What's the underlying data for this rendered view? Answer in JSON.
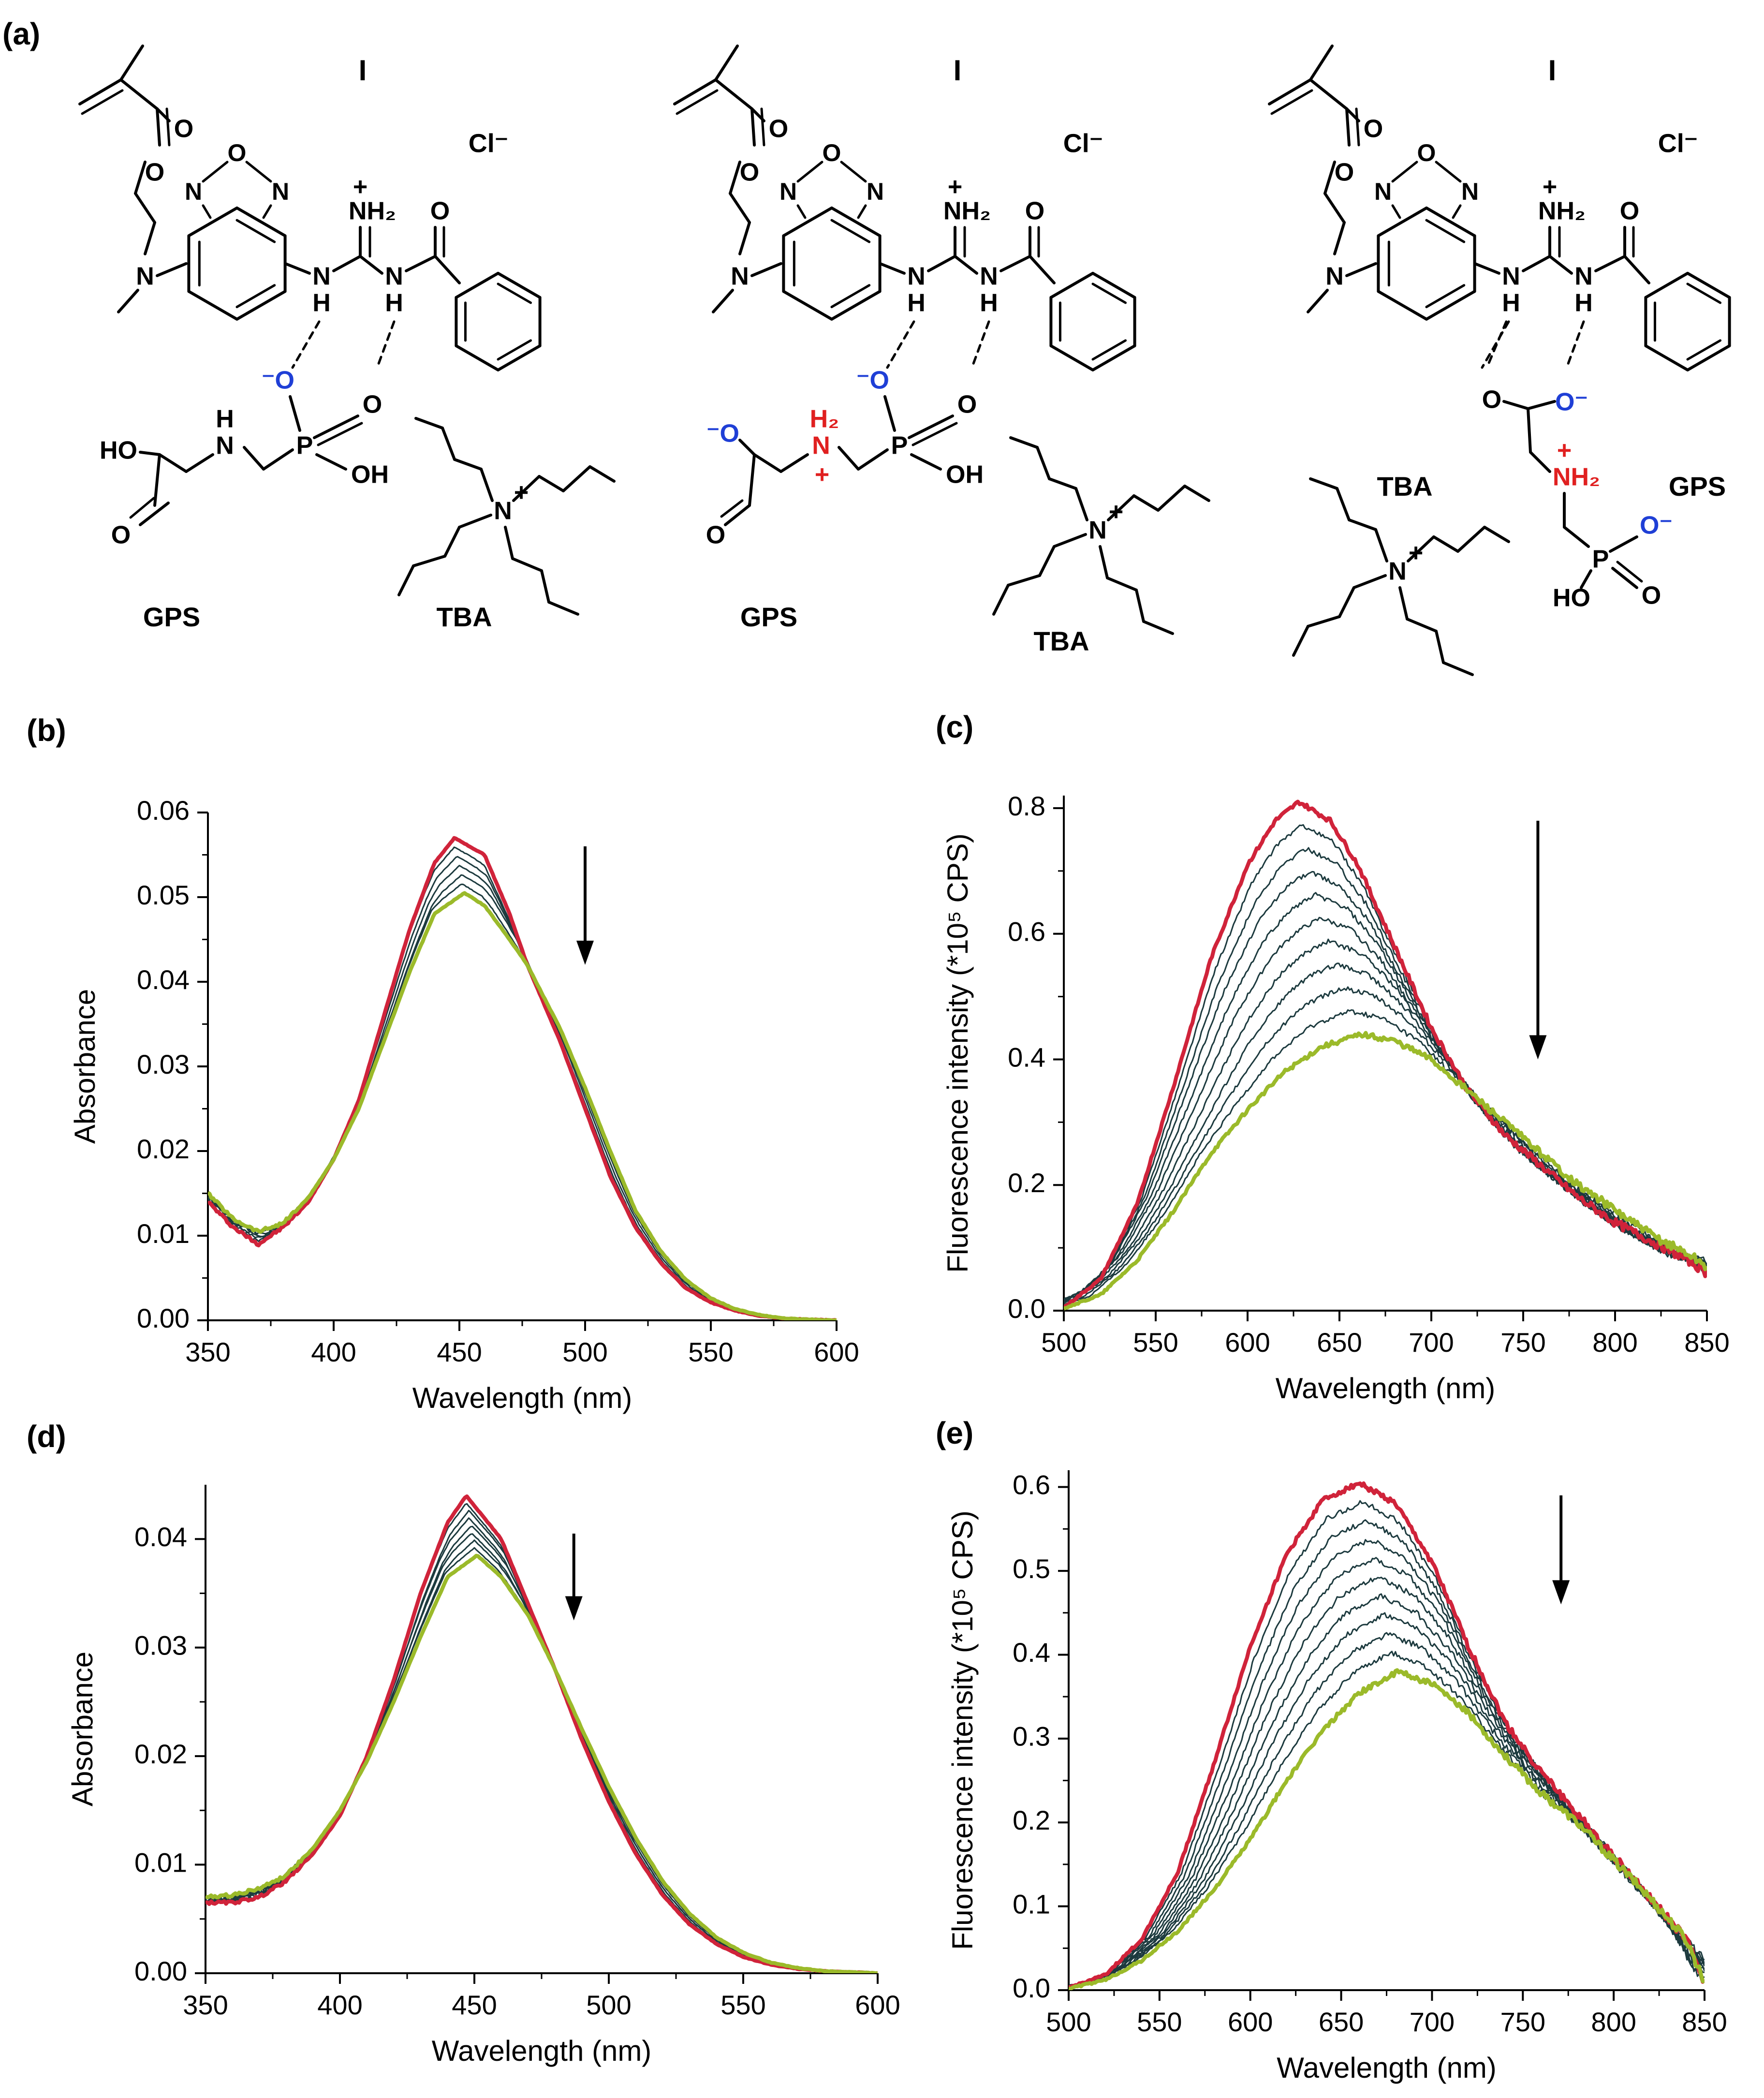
{
  "panel_labels": {
    "a": "(a)",
    "b": "(b)",
    "c": "(c)",
    "d": "(d)",
    "e": "(e)"
  },
  "colors": {
    "first_trace": "#d0233a",
    "last_trace": "#9bba2a",
    "intermediate_trace": "#1c3a3e",
    "positive_charge_atoms": "#e02020",
    "negative_oxygen": "#1f3fd6"
  },
  "structures": {
    "panels": [
      {
        "receptor_label": "I",
        "counterion": "Cl⁻",
        "guest_label": "GPS",
        "cation_label": "TBA",
        "atoms": {
          "O_ester": "O",
          "O_carbonyl": "O",
          "ring_O": "O",
          "ring_N1": "N",
          "ring_N2": "N",
          "NMe": "N",
          "NH_left": "N",
          "H_left": "H",
          "NH2_plus": "NH₂",
          "plus": "+",
          "NH_right": "N",
          "H_right": "H",
          "O_benzoyl": "O",
          "phosphonate_O_minus": "⁻O",
          "phosphonate_O": "O",
          "phosphonate_P": "P",
          "phosphonate_OH": "OH",
          "HO": "HO",
          "glycine_NH": "N",
          "glycine_H": "H",
          "glycine_O": "O",
          "ammonium_N": "N"
        }
      },
      {
        "receptor_label": "I",
        "counterion": "Cl⁻",
        "guest_label": "GPS",
        "cation_label": "TBA",
        "atoms": {
          "O_ester": "O",
          "O_carbonyl": "O",
          "ring_O": "O",
          "ring_N1": "N",
          "ring_N2": "N",
          "NMe": "N",
          "NH_left": "N",
          "H_left": "H",
          "NH2_plus": "NH₂",
          "plus": "+",
          "NH_right": "N",
          "H_right": "H",
          "O_benzoyl": "O",
          "phosphonate_O_minus": "⁻O",
          "phosphonate_O": "O",
          "phosphonate_P": "P",
          "phosphonate_OH": "OH",
          "carboxylate_O_minus": "⁻O",
          "glycine_N": "N",
          "glycine_H2": "H₂",
          "glycine_plus": "+",
          "glycine_O": "O",
          "ammonium_N": "N"
        }
      },
      {
        "receptor_label": "I",
        "counterion": "Cl⁻",
        "guest_label": "GPS",
        "cation_label": "TBA",
        "atoms": {
          "O_ester": "O",
          "O_carbonyl": "O",
          "ring_O": "O",
          "ring_N1": "N",
          "ring_N2": "N",
          "NMe": "N",
          "NH_left": "N",
          "H_left": "H",
          "NH2_plus": "NH₂",
          "plus": "+",
          "NH_right": "N",
          "H_right": "H",
          "O_benzoyl": "O",
          "carboxylate_O": "O",
          "carboxylate_O_minus": "O⁻",
          "glycine_NH2": "NH₂",
          "glycine_plus": "+",
          "phosphonate_P": "P",
          "phosphonate_O_minus": "O⁻",
          "phosphonate_O": "O",
          "phosphonate_HO": "HO",
          "ammonium_N": "N"
        }
      }
    ]
  },
  "chart_data": [
    {
      "panel": "(b)",
      "type": "line",
      "xlabel": "Wavelength (nm)",
      "ylabel": "Absorbance",
      "xlim": [
        350,
        600
      ],
      "ylim": [
        0.0,
        0.06
      ],
      "x_ticks": [
        350,
        400,
        450,
        500,
        550,
        600
      ],
      "x_tick_labels": [
        "350",
        "400",
        "450",
        "500",
        "550",
        "600"
      ],
      "y_ticks": [
        0.0,
        0.01,
        0.02,
        0.03,
        0.04,
        0.05,
        0.06
      ],
      "y_tick_labels": [
        "0.00",
        "0.01",
        "0.02",
        "0.03",
        "0.04",
        "0.05",
        "0.06"
      ],
      "grid": false,
      "arrow": {
        "x": 500,
        "y_from": 0.056,
        "y_to": 0.042
      },
      "series": [
        {
          "color": "red",
          "peak_x": 448,
          "peak_y": 0.057,
          "x": [
            350,
            360,
            370,
            380,
            390,
            400,
            410,
            420,
            430,
            440,
            448,
            460,
            470,
            477,
            490,
            500,
            510,
            520,
            530,
            540,
            550,
            560,
            570,
            580,
            590,
            600
          ],
          "y": [
            0.014,
            0.011,
            0.009,
            0.011,
            0.014,
            0.019,
            0.026,
            0.036,
            0.046,
            0.054,
            0.057,
            0.055,
            0.048,
            0.042,
            0.033,
            0.025,
            0.017,
            0.011,
            0.0068,
            0.0038,
            0.0021,
            0.0011,
            0.0005,
            0.0002,
            0.0001,
            0.0
          ]
        },
        {
          "color": "dark",
          "peak_x": 448,
          "peak_y": 0.0558
        },
        {
          "color": "dark",
          "peak_x": 449,
          "peak_y": 0.0546
        },
        {
          "color": "dark",
          "peak_x": 450,
          "peak_y": 0.0535
        },
        {
          "color": "dark",
          "peak_x": 451,
          "peak_y": 0.0524
        },
        {
          "color": "dark",
          "peak_x": 451,
          "peak_y": 0.0514
        },
        {
          "color": "green",
          "peak_x": 452,
          "peak_y": 0.0505,
          "x": [
            350,
            360,
            370,
            380,
            390,
            400,
            410,
            420,
            430,
            440,
            452,
            460,
            470,
            477,
            490,
            500,
            510,
            520,
            530,
            540,
            550,
            560,
            570,
            580,
            590,
            600
          ],
          "y": [
            0.015,
            0.012,
            0.0105,
            0.0115,
            0.0145,
            0.019,
            0.025,
            0.033,
            0.041,
            0.048,
            0.0505,
            0.049,
            0.045,
            0.042,
            0.0345,
            0.0275,
            0.02,
            0.013,
            0.0082,
            0.0048,
            0.0026,
            0.0013,
            0.0006,
            0.0002,
            0.0001,
            0.0
          ]
        }
      ]
    },
    {
      "panel": "(c)",
      "type": "line",
      "xlabel": "Wavelength (nm)",
      "ylabel": "Fluorescence intensity (*10⁵ CPS)",
      "xlim": [
        500,
        850
      ],
      "ylim": [
        0.0,
        0.82
      ],
      "x_ticks": [
        500,
        550,
        600,
        650,
        700,
        750,
        800,
        850
      ],
      "x_tick_labels": [
        "500",
        "550",
        "600",
        "650",
        "700",
        "750",
        "800",
        "850"
      ],
      "y_ticks": [
        0.0,
        0.2,
        0.4,
        0.6,
        0.8
      ],
      "y_tick_labels": [
        "0.0",
        "0.2",
        "0.4",
        "0.6",
        "0.8"
      ],
      "grid": false,
      "arrow": {
        "x": 758,
        "y_from": 0.78,
        "y_to": 0.4
      },
      "series": [
        {
          "color": "red",
          "peak_x": 628,
          "peak_y": 0.81,
          "x": [
            500,
            520,
            540,
            560,
            580,
            600,
            615,
            628,
            645,
            660,
            680,
            700,
            720,
            740,
            760,
            780,
            800,
            820,
            840,
            850
          ],
          "y": [
            0.005,
            0.05,
            0.17,
            0.36,
            0.56,
            0.71,
            0.78,
            0.81,
            0.78,
            0.71,
            0.58,
            0.45,
            0.35,
            0.28,
            0.23,
            0.18,
            0.14,
            0.11,
            0.08,
            0.06
          ]
        },
        {
          "color": "dark",
          "peak_x": 630,
          "peak_y": 0.78
        },
        {
          "color": "dark",
          "peak_x": 632,
          "peak_y": 0.73
        },
        {
          "color": "dark",
          "peak_x": 634,
          "peak_y": 0.69
        },
        {
          "color": "dark",
          "peak_x": 637,
          "peak_y": 0.64
        },
        {
          "color": "dark",
          "peak_x": 640,
          "peak_y": 0.6
        },
        {
          "color": "dark",
          "peak_x": 644,
          "peak_y": 0.55
        },
        {
          "color": "dark",
          "peak_x": 648,
          "peak_y": 0.52
        },
        {
          "color": "dark",
          "peak_x": 652,
          "peak_y": 0.49
        },
        {
          "color": "dark",
          "peak_x": 656,
          "peak_y": 0.46
        },
        {
          "color": "green",
          "peak_x": 662,
          "peak_y": 0.44,
          "x": [
            500,
            520,
            540,
            560,
            580,
            600,
            620,
            640,
            662,
            680,
            700,
            720,
            740,
            760,
            780,
            800,
            820,
            840,
            850
          ],
          "y": [
            0.004,
            0.025,
            0.08,
            0.16,
            0.25,
            0.32,
            0.38,
            0.42,
            0.44,
            0.43,
            0.4,
            0.35,
            0.3,
            0.25,
            0.2,
            0.16,
            0.12,
            0.09,
            0.07
          ]
        }
      ]
    },
    {
      "panel": "(d)",
      "type": "line",
      "xlabel": "Wavelength (nm)",
      "ylabel": "Absorbance",
      "xlim": [
        350,
        600
      ],
      "ylim": [
        0.0,
        0.045
      ],
      "x_ticks": [
        350,
        400,
        450,
        500,
        550,
        600
      ],
      "x_tick_labels": [
        "350",
        "400",
        "450",
        "500",
        "550",
        "600"
      ],
      "y_ticks": [
        0.0,
        0.01,
        0.02,
        0.03,
        0.04
      ],
      "y_tick_labels": [
        "0.00",
        "0.01",
        "0.02",
        "0.03",
        "0.04"
      ],
      "grid": false,
      "arrow": {
        "x": 487,
        "y_from": 0.0405,
        "y_to": 0.0325
      },
      "series": [
        {
          "color": "red",
          "peak_x": 447,
          "peak_y": 0.044,
          "x": [
            350,
            360,
            370,
            380,
            390,
            400,
            410,
            420,
            430,
            440,
            447,
            460,
            470,
            480,
            490,
            500,
            510,
            520,
            530,
            540,
            550,
            560,
            570,
            580,
            590,
            600
          ],
          "y": [
            0.0065,
            0.0065,
            0.007,
            0.0085,
            0.011,
            0.0145,
            0.02,
            0.027,
            0.035,
            0.0415,
            0.044,
            0.04,
            0.034,
            0.028,
            0.0215,
            0.0158,
            0.011,
            0.0072,
            0.0045,
            0.0027,
            0.0015,
            0.0008,
            0.0004,
            0.0002,
            0.0001,
            0.0
          ]
        },
        {
          "color": "dark",
          "peak_x": 447,
          "peak_y": 0.0432
        },
        {
          "color": "dark",
          "peak_x": 448,
          "peak_y": 0.0425
        },
        {
          "color": "dark",
          "peak_x": 448,
          "peak_y": 0.0418
        },
        {
          "color": "dark",
          "peak_x": 449,
          "peak_y": 0.0411
        },
        {
          "color": "dark",
          "peak_x": 449,
          "peak_y": 0.0405
        },
        {
          "color": "dark",
          "peak_x": 450,
          "peak_y": 0.0398
        },
        {
          "color": "dark",
          "peak_x": 450,
          "peak_y": 0.0392
        },
        {
          "color": "green",
          "peak_x": 451,
          "peak_y": 0.0385,
          "x": [
            350,
            360,
            370,
            380,
            390,
            400,
            410,
            420,
            430,
            440,
            451,
            460,
            470,
            480,
            490,
            500,
            510,
            520,
            530,
            540,
            550,
            560,
            570,
            580,
            590,
            600
          ],
          "y": [
            0.007,
            0.0072,
            0.0078,
            0.009,
            0.0115,
            0.015,
            0.0195,
            0.025,
            0.031,
            0.0365,
            0.0385,
            0.0365,
            0.033,
            0.028,
            0.0225,
            0.0172,
            0.0125,
            0.0085,
            0.0055,
            0.0033,
            0.0019,
            0.001,
            0.0005,
            0.0002,
            0.0001,
            0.0
          ]
        }
      ]
    },
    {
      "panel": "(e)",
      "type": "line",
      "xlabel": "Wavelength (nm)",
      "ylabel": "Fluorescence intensity (*10⁵ CPS)",
      "xlim": [
        500,
        850
      ],
      "ylim": [
        0.0,
        0.62
      ],
      "x_ticks": [
        500,
        550,
        600,
        650,
        700,
        750,
        800,
        850
      ],
      "x_tick_labels": [
        "500",
        "550",
        "600",
        "650",
        "700",
        "750",
        "800",
        "850"
      ],
      "y_ticks": [
        0.0,
        0.1,
        0.2,
        0.3,
        0.4,
        0.5,
        0.6
      ],
      "y_tick_labels": [
        "0.0",
        "0.1",
        "0.2",
        "0.3",
        "0.4",
        "0.5",
        "0.6"
      ],
      "grid": false,
      "arrow": {
        "x": 771,
        "y_from": 0.59,
        "y_to": 0.46
      },
      "series": [
        {
          "color": "red",
          "peak_x": 660,
          "peak_y": 0.605,
          "x": [
            500,
            520,
            540,
            560,
            580,
            600,
            620,
            640,
            660,
            680,
            700,
            720,
            740,
            760,
            780,
            800,
            820,
            840,
            850
          ],
          "y": [
            0.003,
            0.018,
            0.06,
            0.14,
            0.27,
            0.41,
            0.52,
            0.585,
            0.605,
            0.58,
            0.51,
            0.41,
            0.32,
            0.26,
            0.21,
            0.16,
            0.11,
            0.06,
            0.01
          ]
        },
        {
          "color": "dark",
          "peak_x": 662,
          "peak_y": 0.585
        },
        {
          "color": "dark",
          "peak_x": 664,
          "peak_y": 0.565
        },
        {
          "color": "dark",
          "peak_x": 666,
          "peak_y": 0.545
        },
        {
          "color": "dark",
          "peak_x": 668,
          "peak_y": 0.525
        },
        {
          "color": "dark",
          "peak_x": 670,
          "peak_y": 0.505
        },
        {
          "color": "dark",
          "peak_x": 672,
          "peak_y": 0.485
        },
        {
          "color": "dark",
          "peak_x": 674,
          "peak_y": 0.46
        },
        {
          "color": "dark",
          "peak_x": 676,
          "peak_y": 0.435
        },
        {
          "color": "dark",
          "peak_x": 678,
          "peak_y": 0.41
        },
        {
          "color": "green",
          "peak_x": 682,
          "peak_y": 0.38,
          "x": [
            500,
            520,
            540,
            560,
            580,
            600,
            620,
            640,
            660,
            682,
            700,
            720,
            740,
            760,
            780,
            800,
            820,
            840,
            850
          ],
          "y": [
            0.002,
            0.012,
            0.035,
            0.07,
            0.12,
            0.18,
            0.25,
            0.31,
            0.355,
            0.38,
            0.365,
            0.33,
            0.28,
            0.235,
            0.2,
            0.155,
            0.11,
            0.06,
            0.01
          ]
        }
      ]
    }
  ]
}
